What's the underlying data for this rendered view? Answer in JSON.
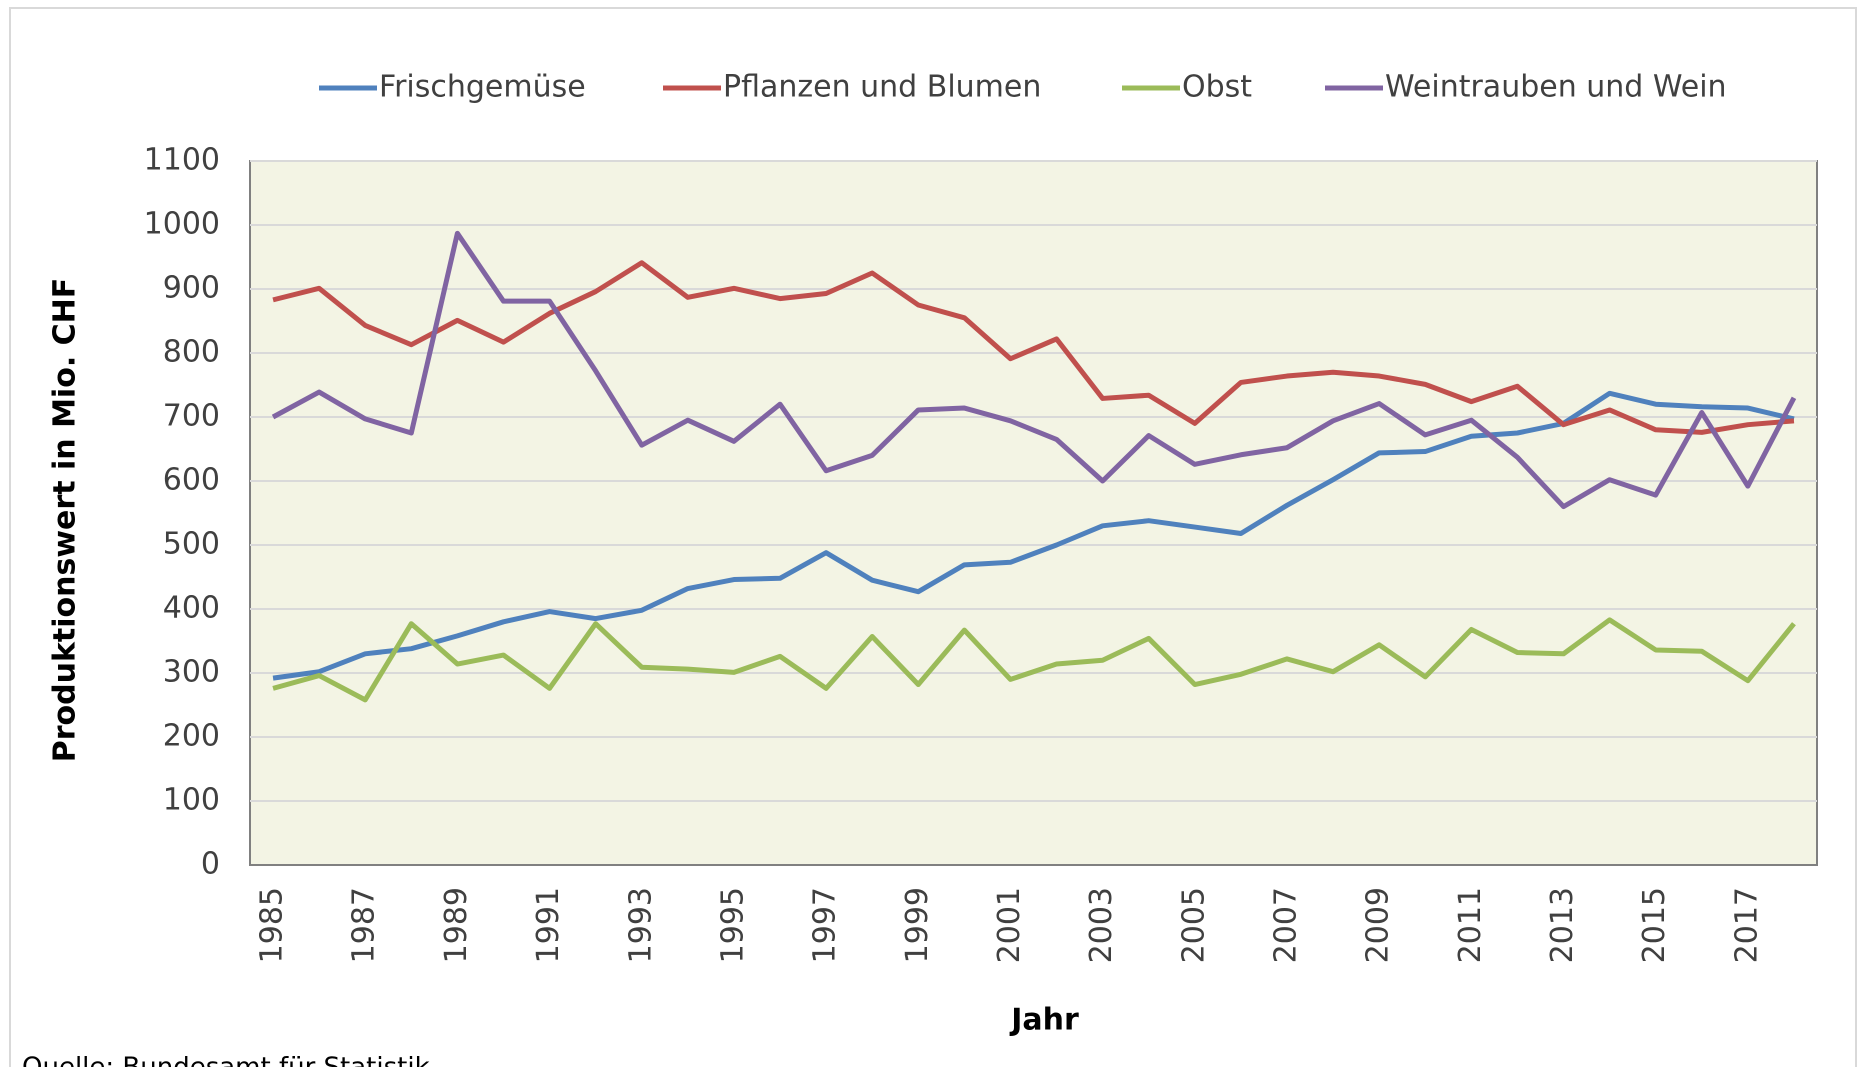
{
  "chart_data": {
    "type": "line",
    "legend": "top",
    "y_label": "Produktionswert in Mio. CHF",
    "x_label": "Jahr",
    "source": "Quelle: Bundesamt für Statistik",
    "categories": [
      "1985",
      null,
      "1987",
      null,
      "1989",
      null,
      "1991",
      null,
      "1993",
      null,
      "1995",
      null,
      "1997",
      null,
      "1999",
      null,
      "2001",
      null,
      "2003",
      null,
      "2005",
      null,
      "2007",
      null,
      "2009",
      null,
      "2011",
      null,
      "2013",
      null,
      "2015",
      null,
      "2017",
      null
    ],
    "ylim": [
      0,
      1100
    ],
    "yticks": [
      0,
      100,
      200,
      300,
      400,
      500,
      600,
      700,
      800,
      900,
      1000,
      1100
    ],
    "grid": true,
    "series": [
      {
        "name": "Frischgemüse",
        "color": "#4f81bd",
        "values": [
          292,
          302,
          330,
          338,
          358,
          380,
          396,
          385,
          398,
          432,
          446,
          448,
          488,
          445,
          427,
          469,
          473,
          500,
          530,
          538,
          528,
          518,
          562,
          602,
          644,
          646,
          670,
          675,
          690,
          737,
          720,
          716,
          714,
          697
        ]
      },
      {
        "name": "Pflanzen und Blumen",
        "color": "#c0504d",
        "values": [
          883,
          901,
          843,
          813,
          851,
          817,
          862,
          896,
          941,
          887,
          901,
          885,
          893,
          925,
          875,
          855,
          791,
          822,
          729,
          734,
          690,
          754,
          764,
          770,
          764,
          751,
          724,
          748,
          688,
          711,
          680,
          676,
          688,
          694
        ]
      },
      {
        "name": "Obst",
        "color": "#9bbb59",
        "values": [
          276,
          296,
          258,
          377,
          314,
          328,
          276,
          377,
          309,
          306,
          301,
          326,
          276,
          357,
          282,
          367,
          290,
          314,
          320,
          354,
          282,
          298,
          322,
          302,
          344,
          294,
          368,
          332,
          330,
          383,
          336,
          334,
          288,
          377
        ]
      },
      {
        "name": "Weintrauben und Wein",
        "color": "#8064a2",
        "values": [
          700,
          739,
          697,
          675,
          987,
          881,
          881,
          772,
          656,
          695,
          662,
          720,
          616,
          640,
          711,
          714,
          694,
          665,
          600,
          671,
          626,
          641,
          652,
          694,
          721,
          672,
          695,
          637,
          560,
          602,
          578,
          707,
          592,
          730
        ]
      }
    ]
  }
}
